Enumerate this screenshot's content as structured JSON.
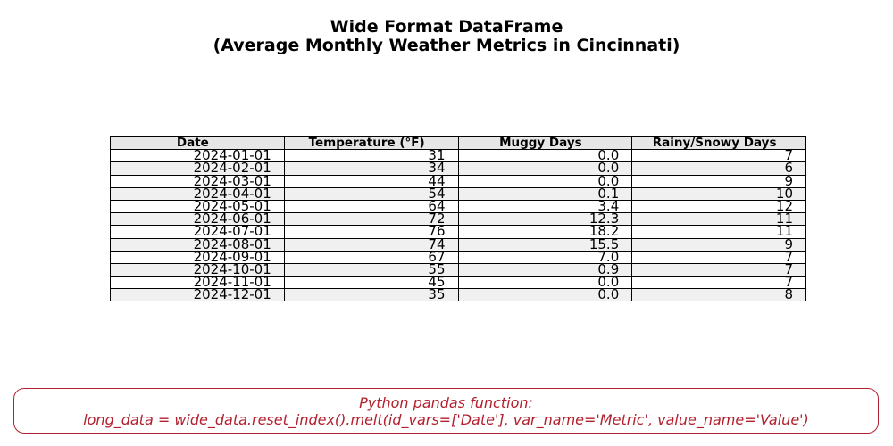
{
  "chart_data": {
    "type": "table",
    "title": "Wide Format DataFrame",
    "subtitle": "(Average Monthly Weather Metrics in Cincinnati)",
    "columns": [
      "Date",
      "Temperature (°F)",
      "Muggy Days",
      "Rainy/Snowy Days"
    ],
    "rows": [
      [
        "2024-01-01",
        "31",
        "0.0",
        "7"
      ],
      [
        "2024-02-01",
        "34",
        "0.0",
        "6"
      ],
      [
        "2024-03-01",
        "44",
        "0.0",
        "9"
      ],
      [
        "2024-04-01",
        "54",
        "0.1",
        "10"
      ],
      [
        "2024-05-01",
        "64",
        "3.4",
        "12"
      ],
      [
        "2024-06-01",
        "72",
        "12.3",
        "11"
      ],
      [
        "2024-07-01",
        "76",
        "18.2",
        "11"
      ],
      [
        "2024-08-01",
        "74",
        "15.5",
        "9"
      ],
      [
        "2024-09-01",
        "67",
        "7.0",
        "7"
      ],
      [
        "2024-10-01",
        "55",
        "0.9",
        "7"
      ],
      [
        "2024-11-01",
        "45",
        "0.0",
        "7"
      ],
      [
        "2024-12-01",
        "35",
        "0.0",
        "8"
      ]
    ]
  },
  "footer": {
    "heading": "Python pandas function:",
    "code": "long_data = wide_data.reset_index().melt(id_vars=['Date'], var_name='Metric', value_name='Value')"
  },
  "colors": {
    "header_bg": "#e6e6e6",
    "stripe_bg": "#f0f0f0",
    "footer_accent": "#b21f2d"
  }
}
